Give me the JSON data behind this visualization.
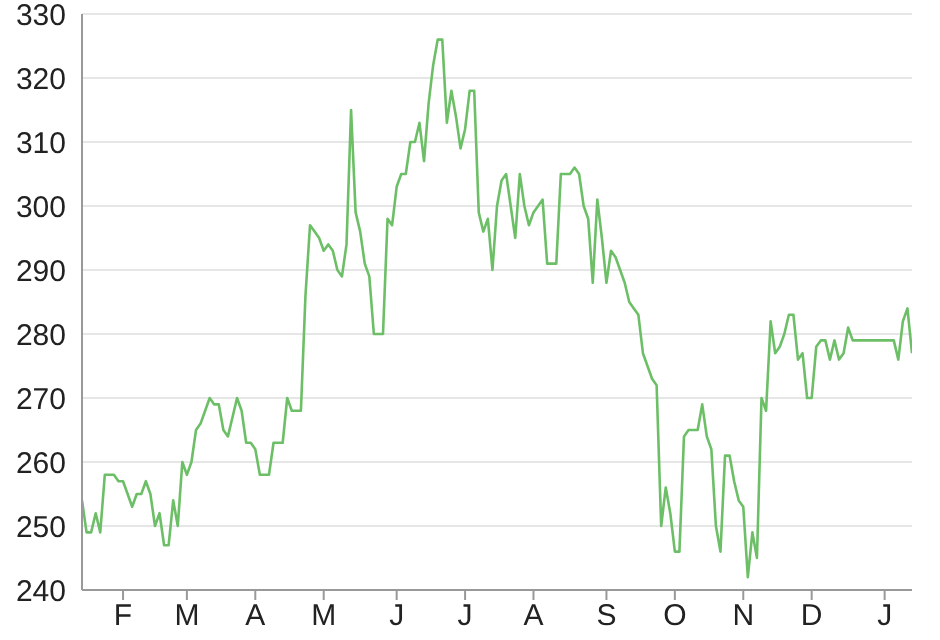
{
  "chart_data": {
    "type": "line",
    "categories": [
      null,
      null,
      null,
      null,
      null,
      null,
      null,
      null,
      null,
      "F",
      null,
      null,
      null,
      null,
      null,
      null,
      null,
      null,
      null,
      null,
      null,
      null,
      null,
      "M",
      null,
      null,
      null,
      null,
      null,
      null,
      null,
      null,
      null,
      null,
      null,
      null,
      null,
      null,
      "A",
      null,
      null,
      null,
      null,
      null,
      null,
      null,
      null,
      null,
      null,
      null,
      null,
      null,
      null,
      "M",
      null,
      null,
      null,
      null,
      null,
      null,
      null,
      null,
      null,
      null,
      null,
      null,
      null,
      null,
      null,
      "J",
      null,
      null,
      null,
      null,
      null,
      null,
      null,
      null,
      null,
      null,
      null,
      null,
      null,
      null,
      "J",
      null,
      null,
      null,
      null,
      null,
      null,
      null,
      null,
      null,
      null,
      null,
      null,
      null,
      null,
      "A",
      null,
      null,
      null,
      null,
      null,
      null,
      null,
      null,
      null,
      null,
      null,
      null,
      null,
      null,
      null,
      "S",
      null,
      null,
      null,
      null,
      null,
      null,
      null,
      null,
      null,
      null,
      null,
      null,
      null,
      null,
      "O",
      null,
      null,
      null,
      null,
      null,
      null,
      null,
      null,
      null,
      null,
      null,
      null,
      null,
      null,
      "N",
      null,
      null,
      null,
      null,
      null,
      null,
      null,
      null,
      null,
      null,
      null,
      null,
      null,
      null,
      "D",
      null,
      null,
      null,
      null,
      null,
      null,
      null,
      null,
      null,
      null,
      null,
      null,
      null,
      null,
      null,
      "J",
      null,
      null,
      null,
      null,
      null,
      null
    ],
    "series": [
      {
        "color": "#6dbf67",
        "values": [
          254,
          249,
          249,
          252,
          249,
          258,
          258,
          258,
          257,
          257,
          255,
          253,
          255,
          255,
          257,
          255,
          250,
          252,
          247,
          247,
          254,
          250,
          260,
          258,
          260,
          265,
          266,
          268,
          270,
          269,
          269,
          265,
          264,
          267,
          270,
          268,
          263,
          263,
          262,
          258,
          258,
          258,
          263,
          263,
          263,
          270,
          268,
          268,
          268,
          286,
          297,
          296,
          295,
          293,
          294,
          293,
          290,
          289,
          294,
          315,
          299,
          296,
          291,
          289,
          280,
          280,
          280,
          298,
          297,
          303,
          305,
          305,
          310,
          310,
          313,
          307,
          316,
          322,
          326,
          326,
          313,
          318,
          314,
          309,
          312,
          318,
          318,
          299,
          296,
          298,
          290,
          300,
          304,
          305,
          300,
          295,
          305,
          300,
          297,
          299,
          300,
          301,
          291,
          291,
          291,
          305,
          305,
          305,
          306,
          305,
          300,
          298,
          288,
          301,
          295,
          288,
          293,
          292,
          290,
          288,
          285,
          284,
          283,
          277,
          275,
          273,
          272,
          250,
          256,
          252,
          246,
          246,
          264,
          265,
          265,
          265,
          269,
          264,
          262,
          250,
          246,
          261,
          261,
          257,
          254,
          253,
          242,
          249,
          245,
          270,
          268,
          282,
          277,
          278,
          280,
          283,
          283,
          276,
          277,
          270,
          270,
          278,
          279,
          279,
          276,
          279,
          276,
          277,
          281,
          279,
          279,
          279,
          279,
          279,
          279,
          279,
          279,
          279,
          279,
          276,
          282,
          284,
          277
        ]
      }
    ],
    "ylim": [
      240,
      330
    ],
    "yticks": [
      240,
      250,
      260,
      270,
      280,
      290,
      300,
      310,
      320,
      330
    ],
    "grid": "y",
    "marker": "none",
    "line_style": "solid"
  }
}
